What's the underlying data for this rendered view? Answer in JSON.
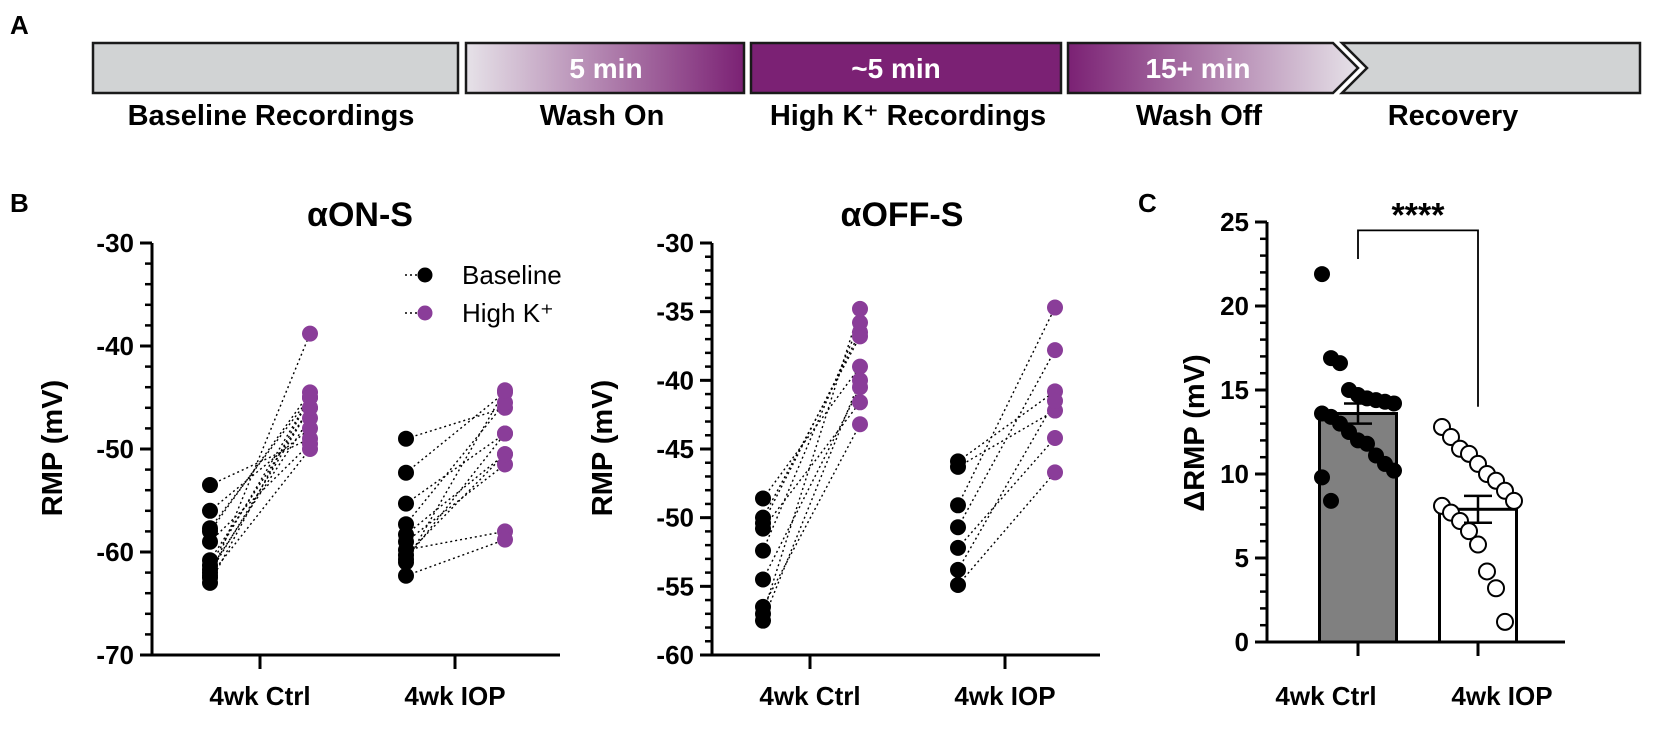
{
  "panel_labels": {
    "a": "A",
    "b": "B",
    "c": "C"
  },
  "colors": {
    "baseline": "#000000",
    "highk": "#8a3d99",
    "purple_dark": "#7b2174",
    "box_gray": "#d1d3d4",
    "bar_ctrl": "#808080"
  },
  "timeline": {
    "segments": [
      {
        "label": "Baseline Recordings",
        "duration": "",
        "fill": "gray"
      },
      {
        "label": "Wash On",
        "duration": "5 min",
        "fill": "fade-in"
      },
      {
        "label": "High K⁺ Recordings",
        "duration": "~5 min",
        "fill": "solid"
      },
      {
        "label": "Wash Off",
        "duration": "15+ min",
        "fill": "fade-out"
      },
      {
        "label": "Recovery",
        "duration": "",
        "fill": "gray"
      }
    ]
  },
  "chart_data": [
    {
      "type": "scatter",
      "title": "αON-S",
      "ylabel": "RMP (mV)",
      "ylim": [
        -70,
        -30
      ],
      "yticks": [
        "-30",
        "-40",
        "-50",
        "-60",
        "-70"
      ],
      "categories": [
        "4wk Ctrl",
        "4wk IOP"
      ],
      "legend": [
        "Baseline",
        "High K⁺"
      ],
      "pairs": [
        {
          "group": "4wk Ctrl",
          "points": [
            [
              -53.5,
              -49.0
            ],
            [
              -56.0,
              -48.0
            ],
            [
              -57.7,
              -45.0
            ],
            [
              -58.0,
              -44.5
            ],
            [
              -59.0,
              -49.5
            ],
            [
              -60.8,
              -46.0
            ],
            [
              -61.3,
              -45.0
            ],
            [
              -61.7,
              -47.0
            ],
            [
              -62.0,
              -46.0
            ],
            [
              -62.3,
              -50.0
            ],
            [
              -62.5,
              -38.8
            ],
            [
              -63.0,
              -45.0
            ]
          ]
        },
        {
          "group": "4wk IOP",
          "points": [
            [
              -49.0,
              -46.0
            ],
            [
              -52.3,
              -44.5
            ],
            [
              -55.3,
              -48.5
            ],
            [
              -57.3,
              -45.5
            ],
            [
              -58.3,
              -50.5
            ],
            [
              -59.0,
              -51.5
            ],
            [
              -59.8,
              -58.0
            ],
            [
              -60.3,
              -50.5
            ],
            [
              -60.7,
              -48.5
            ],
            [
              -61.0,
              -44.3
            ],
            [
              -62.3,
              -58.8
            ]
          ]
        }
      ]
    },
    {
      "type": "scatter",
      "title": "αOFF-S",
      "ylabel": "RMP (mV)",
      "ylim": [
        -60,
        -30
      ],
      "yticks": [
        "-30",
        "-35",
        "-40",
        "-45",
        "-50",
        "-55",
        "-60"
      ],
      "categories": [
        "4wk Ctrl",
        "4wk IOP"
      ],
      "pairs": [
        {
          "group": "4wk Ctrl",
          "points": [
            [
              -48.6,
              -39.0
            ],
            [
              -50.0,
              -36.8
            ],
            [
              -50.4,
              -36.5
            ],
            [
              -50.8,
              -41.6
            ],
            [
              -52.4,
              -35.8
            ],
            [
              -54.5,
              -40.5
            ],
            [
              -56.5,
              -43.2
            ],
            [
              -57.0,
              -34.8
            ],
            [
              -57.5,
              -40.0
            ]
          ]
        },
        {
          "group": "4wk IOP",
          "points": [
            [
              -45.9,
              -40.8
            ],
            [
              -46.3,
              -42.2
            ],
            [
              -49.1,
              -34.7
            ],
            [
              -50.7,
              -37.8
            ],
            [
              -52.2,
              -44.2
            ],
            [
              -53.8,
              -41.5
            ],
            [
              -54.9,
              -46.7
            ]
          ]
        }
      ]
    },
    {
      "type": "bar",
      "ylabel": "ΔRMP (mV)",
      "ylim": [
        0,
        25
      ],
      "yticks": [
        "0",
        "5",
        "10",
        "15",
        "20",
        "25"
      ],
      "categories": [
        "4wk Ctrl",
        "4wk IOP"
      ],
      "means": [
        13.6,
        7.9
      ],
      "sem": [
        0.6,
        0.8
      ],
      "significance": "****",
      "points": [
        [
          21.9,
          16.9,
          16.6,
          15.0,
          14.7,
          14.5,
          14.4,
          14.3,
          14.2,
          13.6,
          13.4,
          13.0,
          12.5,
          12.0,
          11.8,
          11.1,
          10.6,
          10.2,
          9.8,
          8.4
        ],
        [
          12.8,
          12.2,
          11.5,
          11.2,
          10.6,
          10.0,
          9.6,
          9.0,
          8.4,
          8.1,
          7.7,
          7.2,
          6.6,
          5.8,
          4.2,
          3.2,
          1.2
        ]
      ]
    }
  ]
}
